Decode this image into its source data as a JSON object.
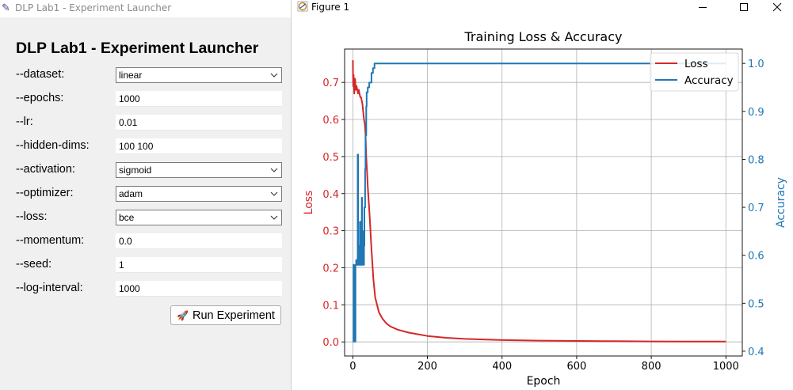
{
  "launcher": {
    "window_title": "DLP Lab1 - Experiment Launcher",
    "heading": "DLP Lab1 - Experiment Launcher",
    "fields": [
      {
        "label": "--dataset:",
        "value": "linear",
        "kind": "combo"
      },
      {
        "label": "--epochs:",
        "value": "1000",
        "kind": "entry"
      },
      {
        "label": "--lr:",
        "value": "0.01",
        "kind": "entry"
      },
      {
        "label": "--hidden-dims:",
        "value": "100 100",
        "kind": "entry"
      },
      {
        "label": "--activation:",
        "value": "sigmoid",
        "kind": "combo"
      },
      {
        "label": "--optimizer:",
        "value": "adam",
        "kind": "combo"
      },
      {
        "label": "--loss:",
        "value": "bce",
        "kind": "combo"
      },
      {
        "label": "--momentum:",
        "value": "0.0",
        "kind": "entry"
      },
      {
        "label": "--seed:",
        "value": "1",
        "kind": "entry"
      },
      {
        "label": "--log-interval:",
        "value": "1000",
        "kind": "entry"
      }
    ],
    "run_button_label": "Run Experiment",
    "run_button_icon": "rocket-icon"
  },
  "figure_window": {
    "title": "Figure 1",
    "controls": [
      "minimize-icon",
      "maximize-icon",
      "close-icon"
    ]
  },
  "chart_data": {
    "type": "line",
    "title": "Training Loss & Accuracy",
    "xlabel": "Epoch",
    "ylabel_left": "Loss",
    "ylabel_right": "Accuracy",
    "xlim": [
      -22,
      1044
    ],
    "ylim_left": [
      -0.038,
      0.79
    ],
    "ylim_right": [
      0.39,
      1.03
    ],
    "xticks": [
      0,
      200,
      400,
      600,
      800,
      1000
    ],
    "yticks_left": [
      0.0,
      0.1,
      0.2,
      0.3,
      0.4,
      0.5,
      0.6,
      0.7
    ],
    "yticks_right": [
      0.4,
      0.5,
      0.6,
      0.7,
      0.8,
      0.9,
      1.0
    ],
    "grid": true,
    "legend_position": "top-right",
    "series": [
      {
        "name": "Loss",
        "axis": "left",
        "color": "#d62728",
        "x": [
          0,
          1,
          2,
          4,
          6,
          8,
          10,
          12,
          14,
          16,
          18,
          20,
          22,
          24,
          26,
          28,
          30,
          32,
          34,
          36,
          38,
          40,
          45,
          50,
          55,
          60,
          70,
          80,
          90,
          100,
          120,
          150,
          200,
          250,
          300,
          400,
          500,
          600,
          700,
          800,
          900,
          1000
        ],
        "y": [
          0.76,
          0.69,
          0.72,
          0.67,
          0.71,
          0.68,
          0.69,
          0.68,
          0.67,
          0.68,
          0.67,
          0.66,
          0.66,
          0.65,
          0.64,
          0.62,
          0.6,
          0.59,
          0.56,
          0.5,
          0.46,
          0.42,
          0.34,
          0.25,
          0.17,
          0.12,
          0.08,
          0.062,
          0.05,
          0.042,
          0.033,
          0.025,
          0.016,
          0.011,
          0.008,
          0.005,
          0.0035,
          0.0025,
          0.0018,
          0.0013,
          0.001,
          0.0008
        ]
      },
      {
        "name": "Accuracy",
        "axis": "right",
        "color": "#1f77b4",
        "x": [
          0,
          2,
          2,
          3,
          3,
          7,
          7,
          9,
          9,
          10,
          10,
          13,
          13,
          14,
          14,
          15,
          15,
          17,
          17,
          19,
          19,
          20,
          20,
          24,
          24,
          25,
          25,
          26,
          26,
          27,
          27,
          28,
          28,
          30,
          30,
          31,
          31,
          33,
          33,
          34,
          34,
          36,
          36,
          37,
          37,
          40,
          40,
          44,
          44,
          50,
          50,
          54,
          54,
          58,
          58,
          1000
        ],
        "y": [
          0.42,
          0.42,
          0.58,
          0.58,
          0.42,
          0.42,
          0.58,
          0.58,
          0.59,
          0.59,
          0.58,
          0.58,
          0.81,
          0.81,
          0.58,
          0.58,
          0.62,
          0.62,
          0.58,
          0.58,
          0.67,
          0.67,
          0.58,
          0.58,
          0.72,
          0.72,
          0.6,
          0.6,
          0.58,
          0.58,
          0.65,
          0.65,
          0.58,
          0.58,
          0.62,
          0.62,
          0.7,
          0.7,
          0.78,
          0.78,
          0.85,
          0.85,
          0.91,
          0.91,
          0.94,
          0.94,
          0.95,
          0.95,
          0.96,
          0.96,
          0.98,
          0.98,
          0.99,
          0.99,
          1.0,
          1.0
        ]
      }
    ]
  }
}
